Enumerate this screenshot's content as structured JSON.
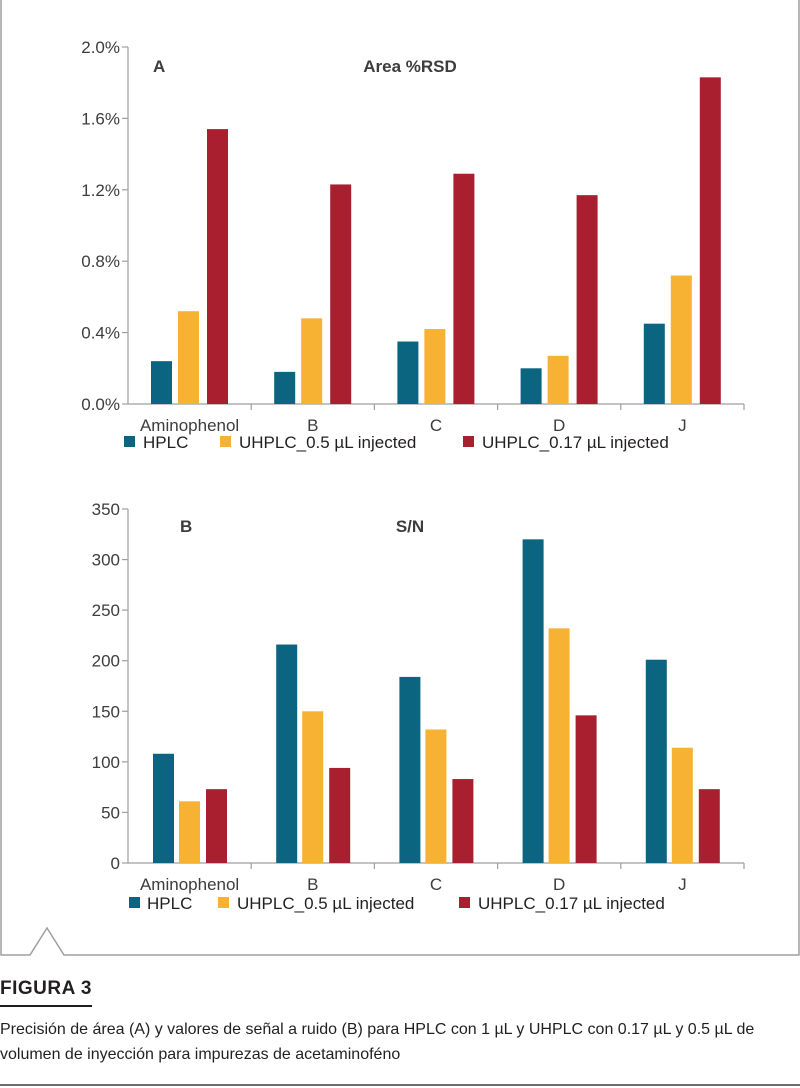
{
  "chart_data": [
    {
      "type": "bar",
      "panel": "A",
      "title": "Area %RSD",
      "categories": [
        "Aminophenol",
        "B",
        "C",
        "D",
        "J"
      ],
      "series": [
        {
          "name": "HPLC",
          "values": [
            0.24,
            0.18,
            0.35,
            0.2,
            0.45
          ]
        },
        {
          "name": "UHPLC_0.5 µL injected",
          "values": [
            0.52,
            0.48,
            0.42,
            0.27,
            0.72
          ]
        },
        {
          "name": "UHPLC_0.17 µL injected",
          "values": [
            1.54,
            1.23,
            1.29,
            1.17,
            1.83
          ]
        }
      ],
      "yticks": [
        "0.0%",
        "0.4%",
        "0.8%",
        "1.2%",
        "1.6%",
        "2.0%"
      ],
      "ylim": [
        0,
        2.0
      ],
      "xlabel": "",
      "ylabel": "",
      "grid": false,
      "legend_position": "bottom"
    },
    {
      "type": "bar",
      "panel": "B",
      "title": "S/N",
      "categories": [
        "Aminophenol",
        "B",
        "C",
        "D",
        "J"
      ],
      "series": [
        {
          "name": "HPLC",
          "values": [
            108,
            216,
            184,
            320,
            201
          ]
        },
        {
          "name": "UHPLC_0.5 µL injected",
          "values": [
            61,
            150,
            132,
            232,
            114
          ]
        },
        {
          "name": "UHPLC_0.17 µL injected",
          "values": [
            73,
            94,
            83,
            146,
            73
          ]
        }
      ],
      "yticks": [
        "0",
        "50",
        "100",
        "150",
        "200",
        "250",
        "300",
        "350"
      ],
      "ylim": [
        0,
        350
      ],
      "xlabel": "",
      "ylabel": "",
      "grid": false,
      "legend_position": "bottom"
    }
  ],
  "colors": {
    "hplc": "#0b6480",
    "uhplc_05": "#f7b233",
    "uhplc_017": "#a91f2f",
    "axis": "#9d9fa2",
    "frame": "#9d9fa2"
  },
  "figure": {
    "label": "FIGURA 3",
    "caption": "Precisión de área (A) y valores de señal a ruido (B) para HPLC con 1 µL y UHPLC con 0.17 µL y 0.5 µL de volumen de inyección para impurezas de acetaminoféno"
  }
}
